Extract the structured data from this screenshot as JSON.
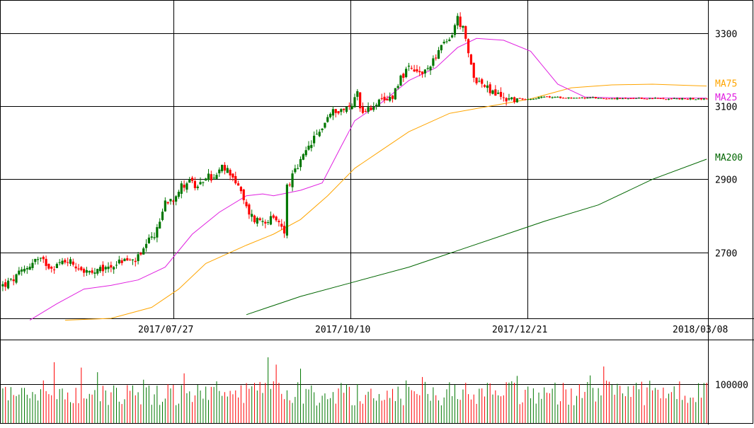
{
  "chart_data": {
    "type": "candlestick",
    "price_axis": {
      "ticks": [
        2700,
        2900,
        3100,
        3300
      ],
      "tick_labels": [
        "2700",
        "2900",
        "3100",
        "3300"
      ],
      "ylim": [
        2520,
        3390
      ]
    },
    "date_axis": {
      "labels": [
        "2017/07/27",
        "2017/10/10",
        "2017/12/21",
        "2018/03/08"
      ]
    },
    "volume_axis": {
      "ticks": [
        100000
      ],
      "tick_labels": [
        "100000"
      ],
      "ylim": [
        0,
        215000
      ]
    },
    "moving_average_labels": [
      "MA75",
      "MA25",
      "MA200"
    ],
    "colors": {
      "up": "#007700",
      "down": "#ff0000",
      "ma25": "#e020e0",
      "ma75": "#ffa500",
      "ma200": "#006600",
      "grid": "#000000"
    },
    "ohlc_anchors": [
      [
        0,
        2610
      ],
      [
        3,
        2620
      ],
      [
        6,
        2640
      ],
      [
        9,
        2660
      ],
      [
        12,
        2680
      ],
      [
        15,
        2675
      ],
      [
        18,
        2660
      ],
      [
        21,
        2670
      ],
      [
        24,
        2680
      ],
      [
        27,
        2665
      ],
      [
        30,
        2650
      ],
      [
        33,
        2640
      ],
      [
        36,
        2650
      ],
      [
        39,
        2660
      ],
      [
        42,
        2670
      ],
      [
        45,
        2680
      ],
      [
        48,
        2675
      ],
      [
        51,
        2690
      ],
      [
        54,
        2730
      ],
      [
        57,
        2760
      ],
      [
        60,
        2840
      ],
      [
        63,
        2850
      ],
      [
        66,
        2880
      ],
      [
        69,
        2900
      ],
      [
        72,
        2870
      ],
      [
        75,
        2910
      ],
      [
        78,
        2900
      ],
      [
        81,
        2930
      ],
      [
        84,
        2920
      ],
      [
        87,
        2880
      ],
      [
        90,
        2820
      ],
      [
        93,
        2790
      ],
      [
        96,
        2790
      ],
      [
        99,
        2790
      ],
      [
        102,
        2780
      ],
      [
        104,
        2760
      ],
      [
        105,
        2880
      ],
      [
        108,
        2920
      ],
      [
        111,
        2960
      ],
      [
        114,
        3000
      ],
      [
        117,
        3030
      ],
      [
        120,
        3070
      ],
      [
        123,
        3090
      ],
      [
        126,
        3090
      ],
      [
        129,
        3100
      ],
      [
        131,
        3150
      ],
      [
        132,
        3090
      ],
      [
        135,
        3090
      ],
      [
        138,
        3110
      ],
      [
        141,
        3110
      ],
      [
        144,
        3130
      ],
      [
        147,
        3180
      ],
      [
        150,
        3200
      ],
      [
        153,
        3190
      ],
      [
        156,
        3190
      ],
      [
        159,
        3230
      ],
      [
        162,
        3260
      ],
      [
        165,
        3280
      ],
      [
        168,
        3340
      ],
      [
        170,
        3310
      ],
      [
        172,
        3240
      ],
      [
        174,
        3180
      ],
      [
        177,
        3160
      ],
      [
        180,
        3140
      ],
      [
        183,
        3130
      ],
      [
        186,
        3120
      ],
      [
        190,
        3120
      ],
      [
        195,
        3120
      ],
      [
        200,
        3125
      ],
      [
        210,
        3123
      ],
      [
        220,
        3122
      ],
      [
        230,
        3120
      ],
      [
        240,
        3121
      ],
      [
        250,
        3120
      ],
      [
        260,
        3120
      ]
    ],
    "ma25": [
      [
        10,
        2515
      ],
      [
        20,
        2560
      ],
      [
        30,
        2600
      ],
      [
        40,
        2610
      ],
      [
        50,
        2625
      ],
      [
        60,
        2660
      ],
      [
        70,
        2750
      ],
      [
        80,
        2810
      ],
      [
        90,
        2855
      ],
      [
        96,
        2860
      ],
      [
        100,
        2855
      ],
      [
        110,
        2870
      ],
      [
        118,
        2890
      ],
      [
        125,
        2990
      ],
      [
        130,
        3060
      ],
      [
        140,
        3110
      ],
      [
        150,
        3170
      ],
      [
        160,
        3205
      ],
      [
        168,
        3260
      ],
      [
        175,
        3285
      ],
      [
        185,
        3280
      ],
      [
        195,
        3250
      ],
      [
        205,
        3160
      ],
      [
        215,
        3125
      ],
      [
        225,
        3123
      ],
      [
        240,
        3122
      ],
      [
        260,
        3122
      ]
    ],
    "ma75": [
      [
        23,
        2515
      ],
      [
        40,
        2520
      ],
      [
        55,
        2550
      ],
      [
        65,
        2600
      ],
      [
        75,
        2670
      ],
      [
        90,
        2720
      ],
      [
        100,
        2750
      ],
      [
        110,
        2790
      ],
      [
        120,
        2855
      ],
      [
        130,
        2930
      ],
      [
        140,
        2980
      ],
      [
        150,
        3030
      ],
      [
        165,
        3080
      ],
      [
        180,
        3100
      ],
      [
        195,
        3120
      ],
      [
        210,
        3150
      ],
      [
        225,
        3158
      ],
      [
        240,
        3160
      ],
      [
        260,
        3155
      ]
    ],
    "ma200": [
      [
        90,
        2530
      ],
      [
        110,
        2580
      ],
      [
        130,
        2620
      ],
      [
        150,
        2660
      ],
      [
        170,
        2710
      ],
      [
        190,
        2760
      ],
      [
        200,
        2785
      ],
      [
        220,
        2830
      ],
      [
        240,
        2900
      ],
      [
        260,
        2955
      ]
    ]
  }
}
